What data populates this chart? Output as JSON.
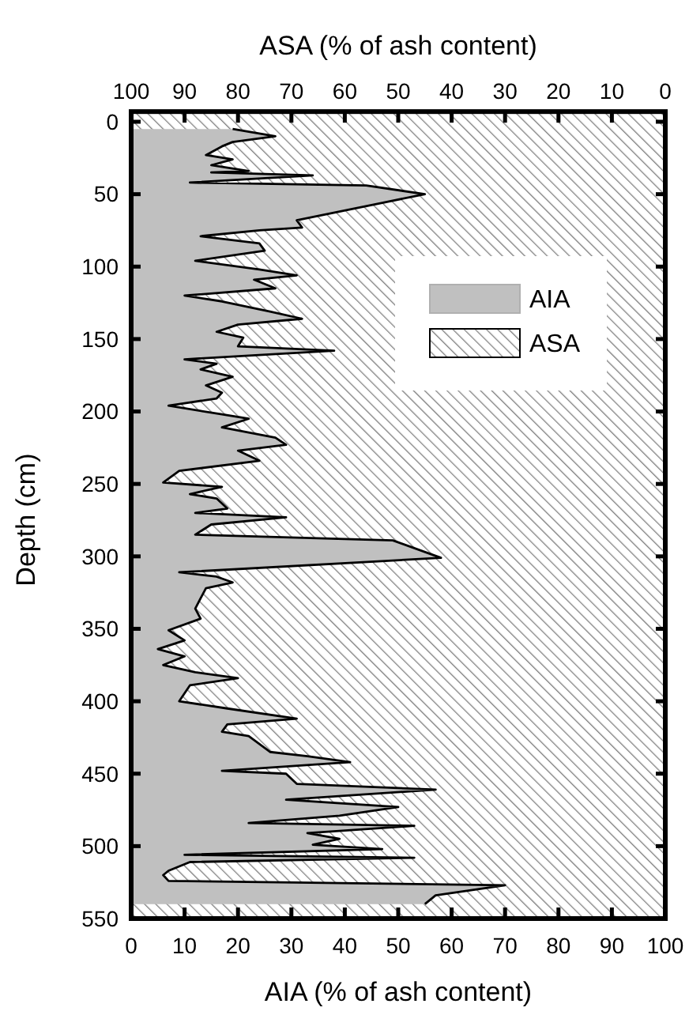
{
  "chart_data": {
    "type": "area",
    "orientation": "horizontal",
    "stacked": true,
    "xlabel": "AIA (% of ash content)",
    "x2label": "ASA (% of ash content)",
    "ylabel": "Depth (cm)",
    "x": [
      5,
      10,
      14,
      17,
      23,
      26,
      30,
      34,
      35,
      37,
      42,
      44,
      50,
      68,
      73,
      75,
      79,
      84,
      89,
      96,
      102,
      106,
      109,
      115,
      120,
      124,
      131,
      136,
      140,
      145,
      149,
      155,
      158,
      164,
      167,
      171,
      176,
      182,
      187,
      191,
      196,
      202,
      205,
      211,
      218,
      223,
      227,
      234,
      241,
      249,
      252,
      257,
      260,
      267,
      270,
      273,
      278,
      285,
      289,
      301,
      311,
      314,
      318,
      322,
      329,
      336,
      343,
      351,
      358,
      364,
      369,
      375,
      380,
      384,
      389,
      400,
      405,
      412,
      416,
      421,
      424,
      435,
      438,
      442,
      448,
      450,
      457,
      461,
      468,
      473,
      479,
      484,
      486,
      491,
      495,
      499,
      502,
      506,
      508,
      511,
      517,
      520,
      524,
      527,
      534,
      540
    ],
    "series": [
      {
        "name": "AIA",
        "color": "#c0c0c0",
        "values": [
          19,
          27,
          19,
          17,
          14,
          19,
          15,
          22,
          15,
          34,
          11,
          44,
          55,
          31,
          32,
          24,
          13,
          24,
          25,
          12,
          24,
          31,
          23,
          27,
          10,
          17,
          26,
          32,
          20,
          16,
          21,
          20,
          38,
          10,
          16,
          13,
          19,
          14,
          17,
          16,
          7,
          17,
          22,
          17,
          27,
          29,
          20,
          24,
          9,
          6,
          17,
          11,
          16,
          18,
          12,
          29,
          15,
          12,
          49,
          58,
          9,
          16,
          19,
          14,
          13,
          12,
          13,
          7,
          10,
          5,
          10,
          6,
          12,
          20,
          11,
          9,
          18,
          31,
          18,
          17,
          22,
          26,
          33,
          41,
          17,
          29,
          31,
          57,
          29,
          50,
          39,
          22,
          53,
          33,
          39,
          34,
          47,
          10,
          53,
          11,
          7,
          6,
          7,
          70,
          57,
          55
        ]
      },
      {
        "name": "ASA",
        "color": "#808080",
        "values": [
          81,
          73,
          81,
          83,
          86,
          81,
          85,
          78,
          85,
          66,
          89,
          56,
          45,
          69,
          68,
          76,
          87,
          76,
          75,
          88,
          76,
          69,
          77,
          73,
          90,
          83,
          74,
          68,
          80,
          84,
          79,
          80,
          62,
          90,
          84,
          87,
          81,
          86,
          83,
          84,
          93,
          83,
          78,
          83,
          73,
          71,
          80,
          76,
          91,
          94,
          83,
          89,
          84,
          82,
          88,
          71,
          85,
          88,
          51,
          42,
          91,
          84,
          81,
          86,
          87,
          88,
          87,
          93,
          90,
          95,
          90,
          94,
          88,
          80,
          89,
          91,
          82,
          69,
          82,
          83,
          78,
          74,
          67,
          59,
          83,
          71,
          69,
          43,
          71,
          50,
          61,
          78,
          47,
          67,
          61,
          66,
          53,
          90,
          47,
          89,
          93,
          94,
          93,
          30,
          43,
          45
        ]
      }
    ],
    "xlim": [
      0,
      100
    ],
    "xticks": [
      0,
      10,
      20,
      30,
      40,
      50,
      60,
      70,
      80,
      90,
      100
    ],
    "x2lim": [
      100,
      0
    ],
    "x2ticks": [
      100,
      90,
      80,
      70,
      60,
      50,
      40,
      30,
      20,
      10,
      0
    ],
    "ylim": [
      550,
      -7
    ],
    "yticks": [
      0,
      50,
      100,
      150,
      200,
      250,
      300,
      350,
      400,
      450,
      500,
      550
    ],
    "legend": "top right"
  }
}
